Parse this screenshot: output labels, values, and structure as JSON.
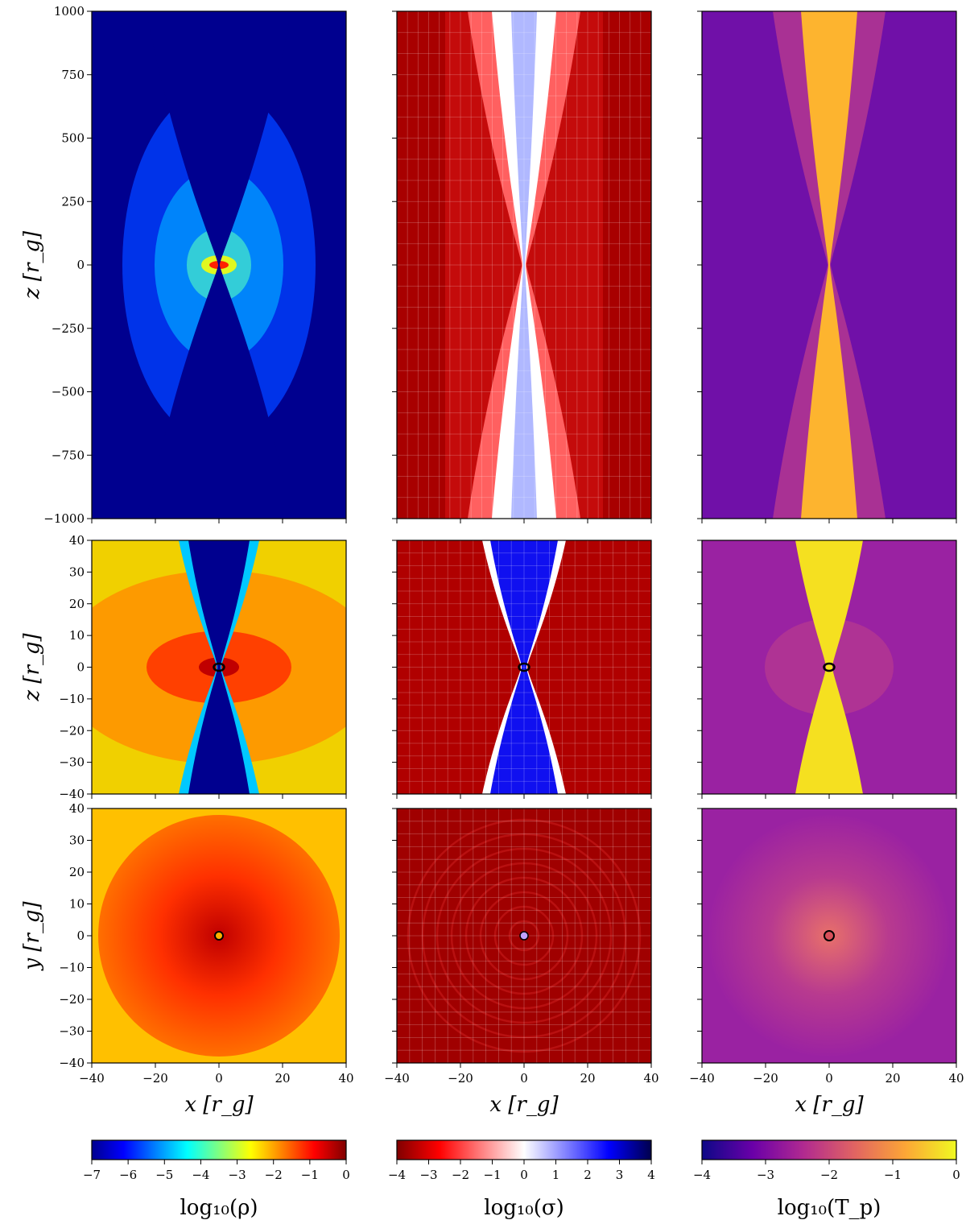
{
  "chart_data": {
    "type": "heatmap",
    "description_free": true,
    "rows": [
      {
        "id": "top",
        "plane": "x-z",
        "xlim": [
          -40,
          40
        ],
        "ylim": [
          -1000,
          1000
        ],
        "yticks": [
          1000,
          750,
          500,
          250,
          0,
          -250,
          -500,
          -750,
          -1000
        ],
        "ytick_labels": [
          "1000",
          "750",
          "500",
          "250",
          "0",
          "−250",
          "−500",
          "−750",
          "−1000"
        ],
        "ylabel": "z [r_g]"
      },
      {
        "id": "middle",
        "plane": "x-z",
        "xlim": [
          -40,
          40
        ],
        "ylim": [
          -40,
          40
        ],
        "yticks": [
          40,
          30,
          20,
          10,
          0,
          -10,
          -20,
          -30,
          -40
        ],
        "ytick_labels": [
          "40",
          "30",
          "20",
          "10",
          "0",
          "−10",
          "−20",
          "−30",
          "−40"
        ],
        "ylabel": "z [r_g]"
      },
      {
        "id": "bottom",
        "plane": "x-y",
        "xlim": [
          -40,
          40
        ],
        "ylim": [
          -40,
          40
        ],
        "yticks": [
          40,
          30,
          20,
          10,
          0,
          -10,
          -20,
          -30,
          -40
        ],
        "ytick_labels": [
          "40",
          "30",
          "20",
          "10",
          "0",
          "−10",
          "−20",
          "−30",
          "−40"
        ],
        "ylabel": "y [r_g]"
      }
    ],
    "xticks": [
      -40,
      -20,
      0,
      20,
      40
    ],
    "xtick_labels": [
      "−40",
      "−20",
      "0",
      "20",
      "40"
    ],
    "xlabel": "x [r_g]",
    "columns": [
      {
        "quantity": "log10(rho)",
        "colorbar_label": "log₁₀(ρ)",
        "colormap": "jet",
        "range": [
          -7,
          0
        ],
        "ticks": [
          -7,
          -6,
          -5,
          -4,
          -3,
          -2,
          -1,
          0
        ],
        "tick_labels": [
          "−7",
          "−6",
          "−5",
          "−4",
          "−3",
          "−2",
          "−1",
          "0"
        ],
        "colors": [
          "#00008f",
          "#0000ff",
          "#0080ff",
          "#00ffff",
          "#80ff80",
          "#ffff00",
          "#ff8000",
          "#ff0000",
          "#800000"
        ]
      },
      {
        "quantity": "log10(sigma)",
        "colorbar_label": "log₁₀(σ)",
        "colormap": "seismic_r",
        "range": [
          -4,
          4
        ],
        "ticks": [
          -4,
          -3,
          -2,
          -1,
          0,
          1,
          2,
          3,
          4
        ],
        "tick_labels": [
          "−4",
          "−3",
          "−2",
          "−1",
          "0",
          "1",
          "2",
          "3",
          "4"
        ],
        "colors": [
          "#800000",
          "#ff0000",
          "#ff8080",
          "#ffffff",
          "#8080ff",
          "#0000ff",
          "#00004c"
        ]
      },
      {
        "quantity": "log10(T_p)",
        "colorbar_label": "log₁₀(T_p)",
        "colormap": "plasma",
        "range": [
          -4,
          0
        ],
        "ticks": [
          -4,
          -3,
          -2,
          -1,
          0
        ],
        "tick_labels": [
          "−4",
          "−3",
          "−2",
          "−1",
          "0"
        ],
        "colors": [
          "#0d0887",
          "#6a00a8",
          "#b12a90",
          "#e16462",
          "#fca636",
          "#f0f921"
        ]
      }
    ]
  }
}
